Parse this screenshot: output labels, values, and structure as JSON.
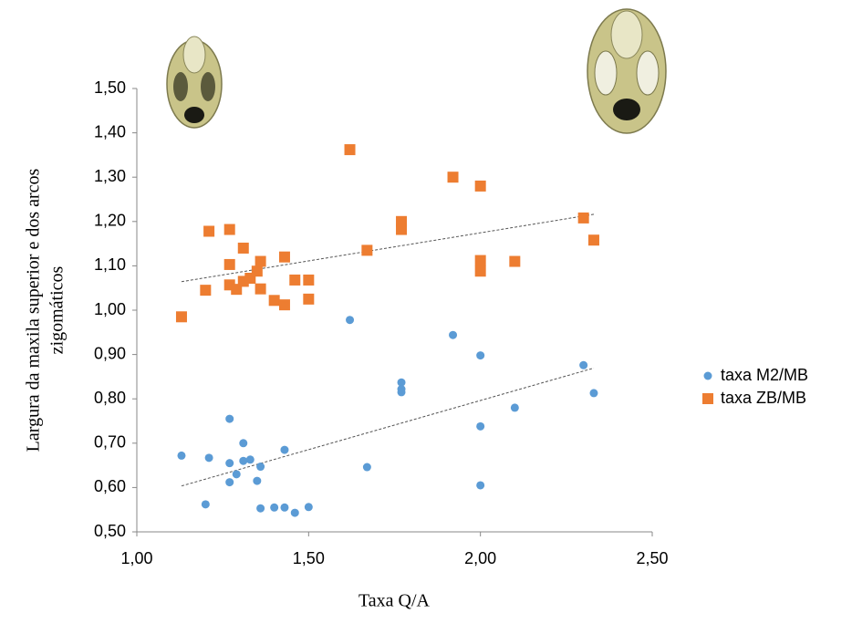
{
  "chart_data": {
    "type": "scatter",
    "x_label": "Taxa Q/A",
    "y_label": [
      "Largura da maxila superior e dos arcos",
      "zigomáticos"
    ],
    "xlim": [
      1.0,
      2.5
    ],
    "xticks": [
      {
        "value": 1.0,
        "label": "1,00"
      },
      {
        "value": 1.5,
        "label": "1,50"
      },
      {
        "value": 2.0,
        "label": "2,00"
      },
      {
        "value": 2.5,
        "label": "2,50"
      }
    ],
    "ylim": [
      0.5,
      1.5
    ],
    "yticks": [
      {
        "value": 0.5,
        "label": "0,50"
      },
      {
        "value": 0.6,
        "label": "0,60"
      },
      {
        "value": 0.7,
        "label": "0,70"
      },
      {
        "value": 0.8,
        "label": "0,80"
      },
      {
        "value": 0.9,
        "label": "0,90"
      },
      {
        "value": 1.0,
        "label": "1,00"
      },
      {
        "value": 1.1,
        "label": "1,10"
      },
      {
        "value": 1.2,
        "label": "1,20"
      },
      {
        "value": 1.3,
        "label": "1,30"
      },
      {
        "value": 1.4,
        "label": "1,40"
      },
      {
        "value": 1.5,
        "label": "1,50"
      }
    ],
    "legend": "right",
    "trendline": true,
    "series": [
      {
        "name": "taxa M2/MB",
        "color": "#5b9bd5",
        "marker": "circle",
        "x": [
          1.13,
          1.2,
          1.21,
          1.27,
          1.27,
          1.27,
          1.29,
          1.31,
          1.31,
          1.33,
          1.35,
          1.36,
          1.36,
          1.4,
          1.43,
          1.43,
          1.46,
          1.5,
          1.62,
          1.67,
          1.77,
          1.77,
          1.77,
          1.92,
          2.0,
          2.0,
          2.0,
          2.1,
          2.3,
          2.33
        ],
        "values": [
          0.672,
          0.562,
          0.667,
          0.755,
          0.655,
          0.612,
          0.63,
          0.7,
          0.66,
          0.663,
          0.615,
          0.647,
          0.553,
          0.555,
          0.685,
          0.555,
          0.543,
          0.556,
          0.978,
          0.646,
          0.837,
          0.822,
          0.815,
          0.944,
          0.898,
          0.738,
          0.605,
          0.78,
          0.876,
          0.813
        ]
      },
      {
        "name": "taxa ZB/MB",
        "color": "#ed7d31",
        "marker": "square",
        "x": [
          1.13,
          1.2,
          1.21,
          1.27,
          1.27,
          1.27,
          1.29,
          1.31,
          1.31,
          1.33,
          1.35,
          1.36,
          1.36,
          1.4,
          1.43,
          1.43,
          1.46,
          1.5,
          1.5,
          1.62,
          1.67,
          1.77,
          1.77,
          1.92,
          2.0,
          2.0,
          2.0,
          2.1,
          2.3,
          2.33
        ],
        "values": [
          0.985,
          1.045,
          1.178,
          1.182,
          1.103,
          1.057,
          1.047,
          1.14,
          1.065,
          1.072,
          1.088,
          1.11,
          1.048,
          1.022,
          1.12,
          1.012,
          1.068,
          1.068,
          1.025,
          1.362,
          1.135,
          1.2,
          1.182,
          1.3,
          1.28,
          1.112,
          1.088,
          1.11,
          1.208,
          1.158
        ]
      }
    ]
  }
}
